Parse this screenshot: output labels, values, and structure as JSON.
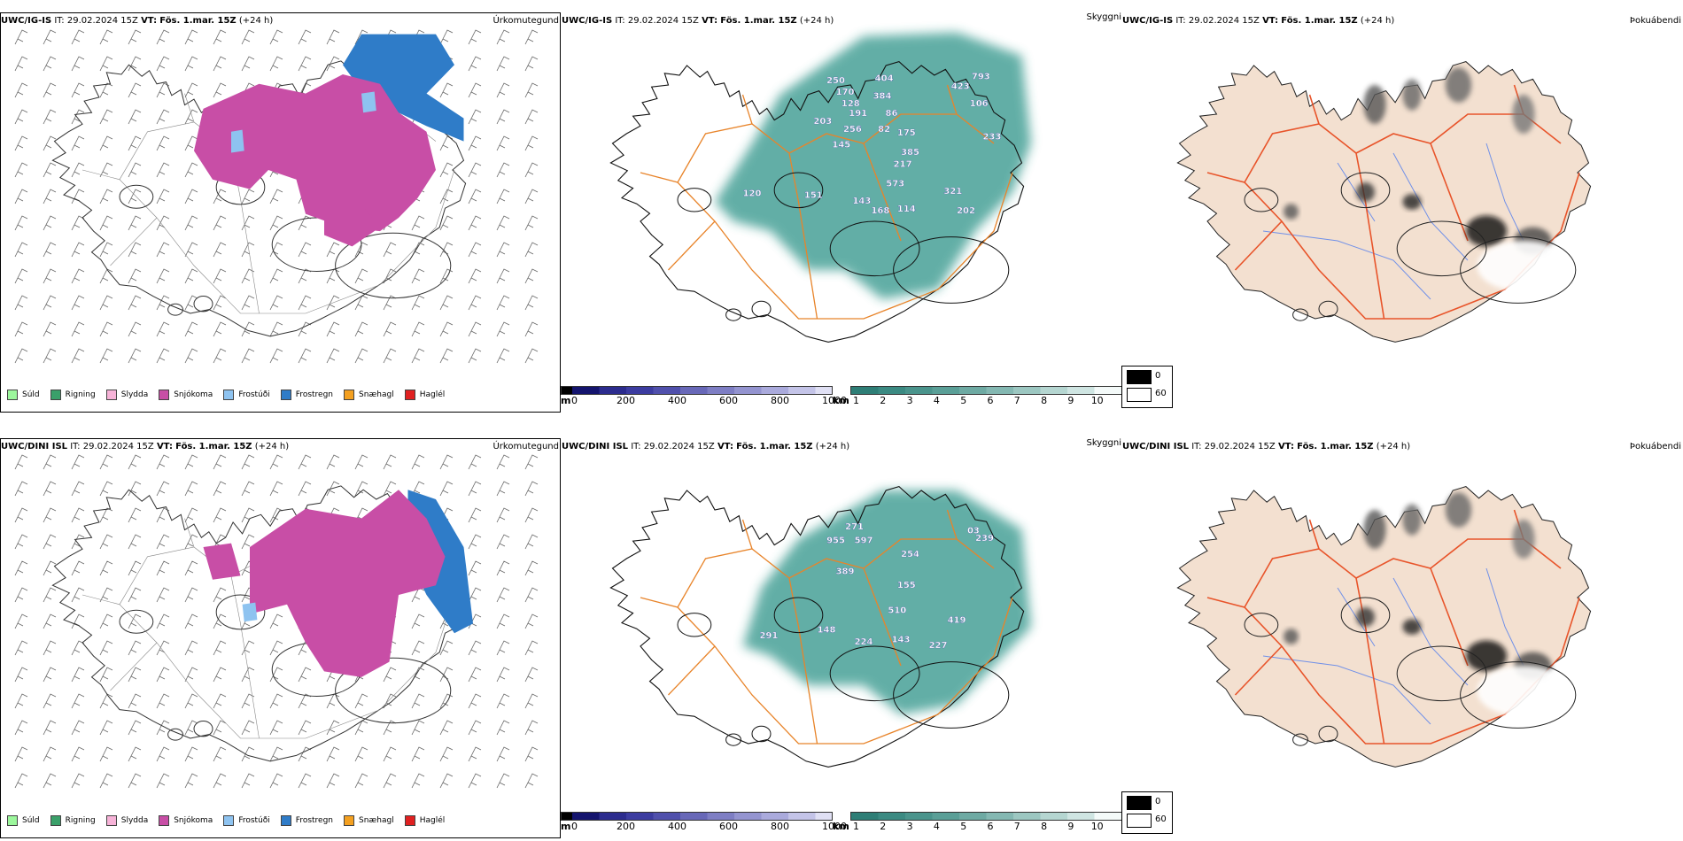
{
  "panels": [
    {
      "model": "UWC/IG-IS",
      "it_label": "IT:",
      "it": "29.02.2024 15Z",
      "vt_label": "VT:",
      "vt": "Fös. 1.mar. 15Z",
      "lead": "(+24 h)",
      "title": "Úrkomutegund"
    },
    {
      "model": "UWC/IG-IS",
      "it_label": "IT:",
      "it": "29.02.2024 15Z",
      "vt_label": "VT:",
      "vt": "Fös. 1.mar. 15Z",
      "lead": "(+24 h)",
      "title": "Skyggni"
    },
    {
      "model": "UWC/IG-IS",
      "it_label": "IT:",
      "it": "29.02.2024 15Z",
      "vt_label": "VT:",
      "vt": "Fös. 1.mar. 15Z",
      "lead": "(+24 h)",
      "title": "Þokuábendi"
    },
    {
      "model": "UWC/DINI ISL",
      "it_label": "IT:",
      "it": "29.02.2024 15Z",
      "vt_label": "VT:",
      "vt": "Fös. 1.mar. 15Z",
      "lead": "(+24 h)",
      "title": "Úrkomutegund"
    },
    {
      "model": "UWC/DINI ISL",
      "it_label": "IT:",
      "it": "29.02.2024 15Z",
      "vt_label": "VT:",
      "vt": "Fös. 1.mar. 15Z",
      "lead": "(+24 h)",
      "title": "Skyggni"
    },
    {
      "model": "UWC/DINI ISL",
      "it_label": "IT:",
      "it": "29.02.2024 15Z",
      "vt_label": "VT:",
      "vt": "Fös. 1.mar. 15Z",
      "lead": "(+24 h)",
      "title": "Þokuábendi"
    }
  ],
  "precip_legend": [
    {
      "label": "Súld",
      "color": "#9cf79c"
    },
    {
      "label": "Rigning",
      "color": "#3aa06a"
    },
    {
      "label": "Slydda",
      "color": "#f7b3d8"
    },
    {
      "label": "Snjókoma",
      "color": "#c84ea6"
    },
    {
      "label": "Frostúði",
      "color": "#8ec3f0"
    },
    {
      "label": "Frostregn",
      "color": "#2f7cc8"
    },
    {
      "label": "Snæhagl",
      "color": "#f4a020"
    },
    {
      "label": "Haglél",
      "color": "#e02020"
    }
  ],
  "elevation_scale": {
    "unit": "m",
    "ticks": [
      "0",
      "200",
      "400",
      "600",
      "800",
      "1000"
    ]
  },
  "visibility_scale": {
    "unit": "km",
    "ticks": [
      "1",
      "2",
      "3",
      "4",
      "5",
      "6",
      "7",
      "8",
      "9",
      "10"
    ]
  },
  "fog_legend": [
    {
      "label": "0",
      "color": "#000000"
    },
    {
      "label": "60",
      "color": "#ffffff"
    }
  ],
  "colors": {
    "snow": "#c84ea6",
    "freezing_rain": "#2f7cc8",
    "freezing_drizzle": "#8ec3f0",
    "visibility_fill": "#2f9489",
    "land": "#f3e0d0",
    "roads": "#e8842a",
    "roads_fog": "#e8542a",
    "rivers": "#7090e8"
  },
  "elevation_labels_ig": [
    "250",
    "404",
    "170",
    "128",
    "384",
    "191",
    "86",
    "203",
    "256",
    "82",
    "145",
    "175",
    "423",
    "793",
    "106",
    "233",
    "385",
    "217",
    "573",
    "321",
    "120",
    "151",
    "143",
    "168",
    "114",
    "202"
  ],
  "elevation_labels_dini": [
    "271",
    "597",
    "955",
    "254",
    "389",
    "155",
    "03",
    "239",
    "510",
    "419",
    "291",
    "148",
    "224",
    "143",
    "227"
  ]
}
